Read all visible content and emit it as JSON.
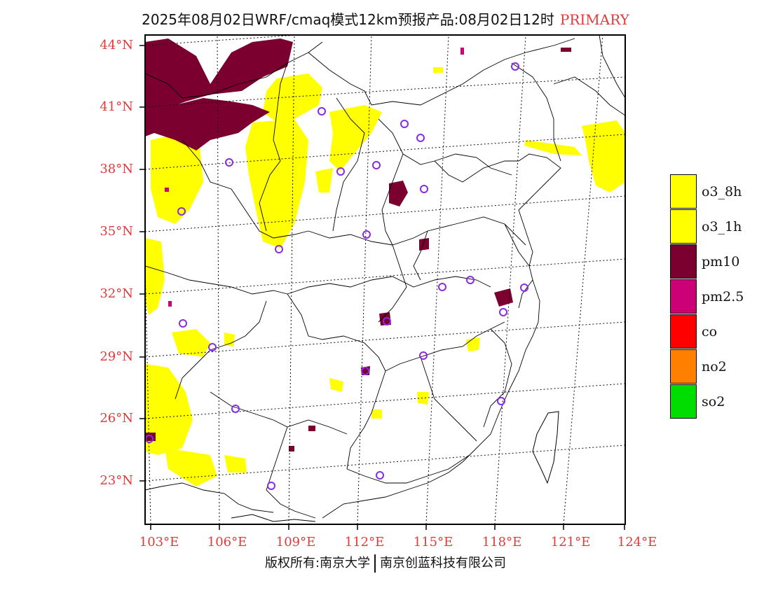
{
  "title": {
    "main": "2025年08月02日WRF/cmaq模式12km预报产品:08月02日12时",
    "tag": "PRIMARY",
    "tag_color": "#e03a3a"
  },
  "axes": {
    "lat_labels": [
      "44°N",
      "41°N",
      "38°N",
      "35°N",
      "32°N",
      "29°N",
      "26°N",
      "23°N"
    ],
    "lon_labels": [
      "103°E",
      "106°E",
      "109°E",
      "112°E",
      "115°E",
      "118°E",
      "121°E",
      "124°E"
    ],
    "label_color": "#e03a3a"
  },
  "legend": [
    {
      "label": "o3_8h",
      "color": "#ffff00"
    },
    {
      "label": "o3_1h",
      "color": "#ffff00"
    },
    {
      "label": "pm10",
      "color": "#7b0030"
    },
    {
      "label": "pm2.5",
      "color": "#cc0077"
    },
    {
      "label": "co",
      "color": "#ff0000"
    },
    {
      "label": "no2",
      "color": "#ff7f00"
    },
    {
      "label": "so2",
      "color": "#00dd00"
    }
  ],
  "footer": {
    "left": "版权所有:南京大学",
    "right": "南京创蓝科技有限公司"
  }
}
